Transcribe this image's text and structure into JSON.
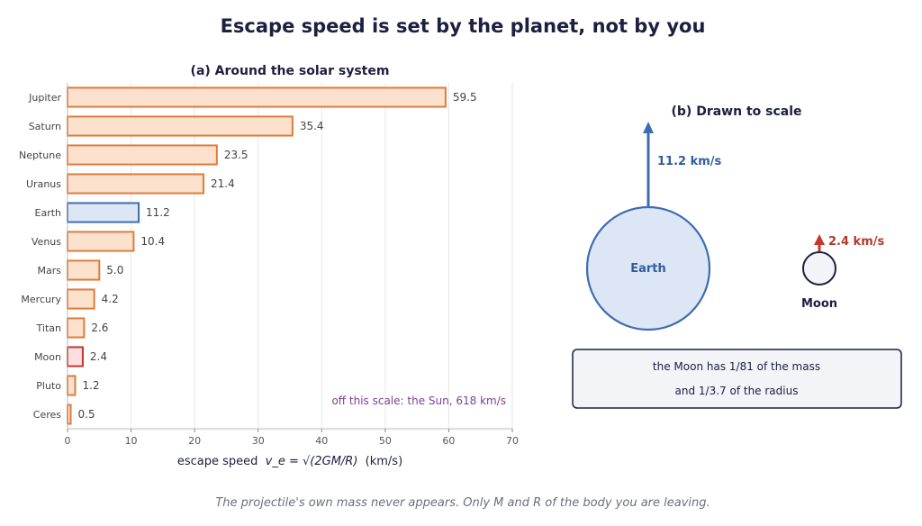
{
  "title": "Escape speed is set by the planet, not by you",
  "footer": "The projectile's own mass never appears. Only M and R of the body you are leaving.",
  "colors": {
    "title": "#1c1f3f",
    "bar_fill": "#fde1cf",
    "bar_stroke": "#e07b39",
    "earth_fill": "#dce6f5",
    "earth_stroke": "#3d6db0",
    "moon_fill": "#fbdfe3",
    "moon_stroke": "#c0392b",
    "annotation": "#7b3f98",
    "grid": "#e6e6e6",
    "footer": "#6b6f80"
  },
  "chart_data": [
    {
      "type": "bar",
      "orientation": "horizontal",
      "title": "(a) Around the solar system",
      "xlabel": "escape speed",
      "xlabel_formula": "v_e = √(2GM/R)",
      "xlabel_unit": "(km/s)",
      "xlim": [
        0,
        70
      ],
      "xticks": [
        0,
        10,
        20,
        30,
        40,
        50,
        60,
        70
      ],
      "grid": "vertical",
      "categories": [
        "Jupiter",
        "Saturn",
        "Neptune",
        "Uranus",
        "Earth",
        "Venus",
        "Mars",
        "Mercury",
        "Titan",
        "Moon",
        "Pluto",
        "Ceres"
      ],
      "values": [
        59.5,
        35.4,
        23.5,
        21.4,
        11.2,
        10.4,
        5.0,
        4.2,
        2.6,
        2.4,
        1.2,
        0.5
      ],
      "value_labels": [
        "59.5",
        "35.4",
        "23.5",
        "21.4",
        "11.2",
        "10.4",
        "5.0",
        "4.2",
        "2.6",
        "2.4",
        "1.2",
        "0.5"
      ],
      "highlight": {
        "Earth": "earth",
        "Moon": "moon"
      },
      "annotation": "off this scale:  the Sun,  618 km/s"
    },
    {
      "type": "diagram",
      "title": "(b) Drawn to scale",
      "bodies": [
        {
          "name": "Earth",
          "speed": 11.2,
          "speed_label": "11.2 km/s",
          "radius_ratio": 1.0
        },
        {
          "name": "Moon",
          "speed": 2.4,
          "speed_label": "2.4 km/s",
          "radius_ratio": 0.27
        }
      ],
      "note_lines": [
        "the Moon has 1/81 of the mass",
        "and 1/3.7 of the radius"
      ]
    }
  ]
}
